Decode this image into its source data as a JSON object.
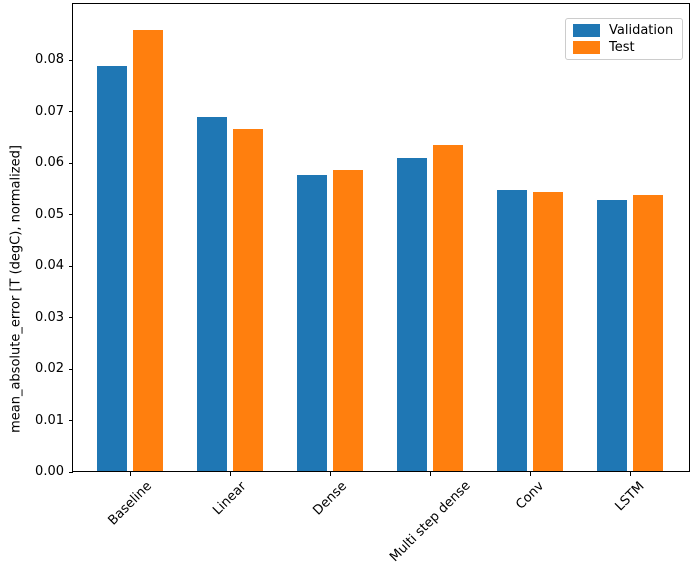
{
  "chart_data": {
    "type": "bar",
    "title": "",
    "categories": [
      "Baseline",
      "Linear",
      "Dense",
      "Multi step dense",
      "Conv",
      "LSTM"
    ],
    "series": [
      {
        "name": "Validation",
        "color": "#1f77b4",
        "values": [
          0.0787,
          0.0687,
          0.0574,
          0.0608,
          0.0546,
          0.0526
        ]
      },
      {
        "name": "Test",
        "color": "#ff7f0e",
        "values": [
          0.0856,
          0.0665,
          0.0585,
          0.0633,
          0.0542,
          0.0536
        ]
      }
    ],
    "xlabel": "",
    "ylabel": "mean_absolute_error [T (degC), normalized]",
    "ylim": [
      0,
      0.0909
    ],
    "yticks": [
      0,
      0.01,
      0.02,
      0.03,
      0.04,
      0.05,
      0.06,
      0.07,
      0.08
    ],
    "ytick_labels": [
      "0.00",
      "0.01",
      "0.02",
      "0.03",
      "0.04",
      "0.05",
      "0.06",
      "0.07",
      "0.08"
    ],
    "xtick_rotation": 45,
    "grid": false,
    "legend_position": "upper right"
  }
}
